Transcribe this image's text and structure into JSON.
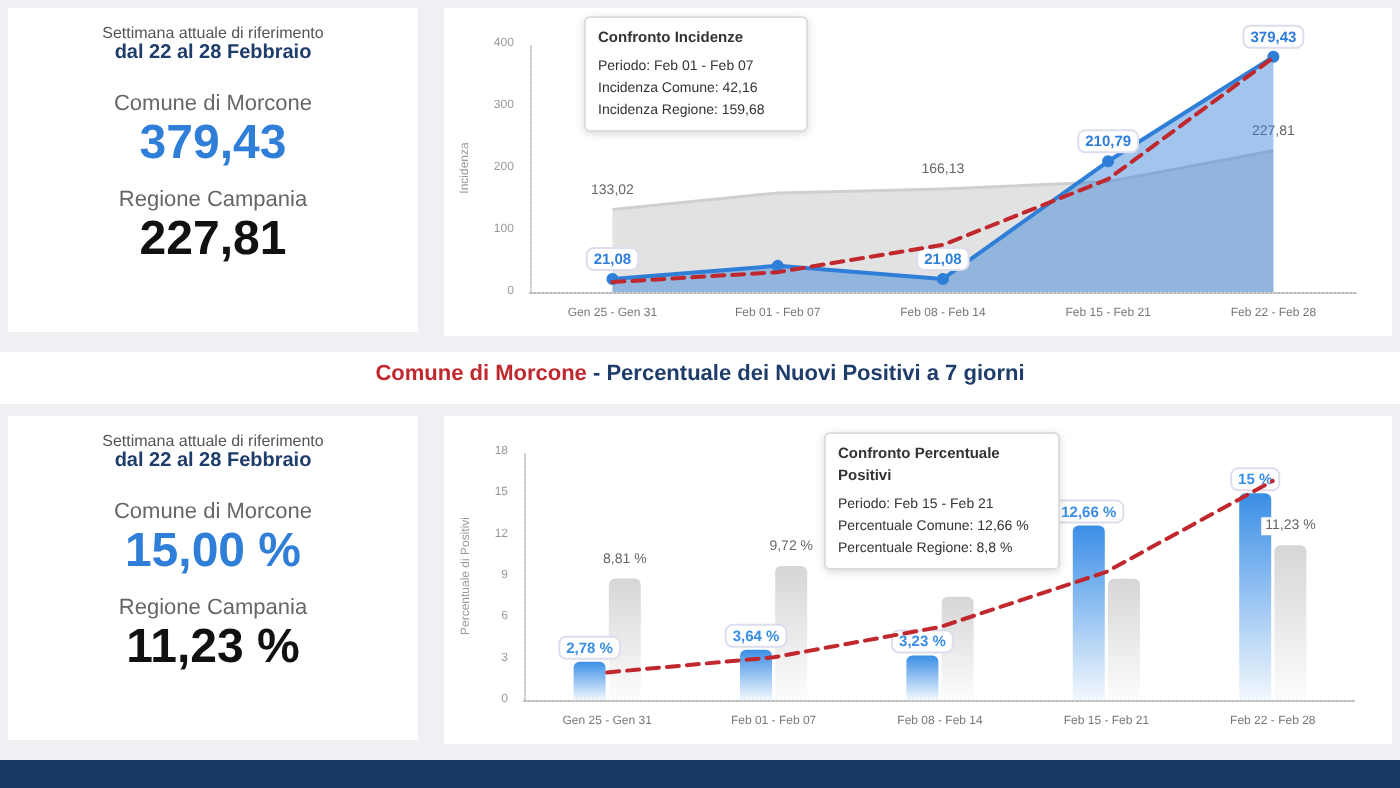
{
  "chart_data": [
    {
      "type": "other",
      "annotations": [
        "Settimana attuale di riferimento",
        "dal 22 al 28 Febbraio",
        "Comune di Morcone",
        "379,43",
        "Regione Campania",
        "227,81"
      ]
    },
    {
      "type": "area",
      "ylabel": "Incidenza",
      "categories": [
        "Gen 25 - Gen 31",
        "Feb 01 - Feb 07",
        "Feb 08 - Feb 14",
        "Feb 15 - Feb 21",
        "Feb 22 - Feb 28"
      ],
      "ylim": [
        0,
        400
      ],
      "yticks": [
        0,
        100,
        200,
        300,
        400
      ],
      "grid": false,
      "series": [
        {
          "color": "#cfcfcf",
          "values": [
            133.02,
            159.68,
            166.13,
            178,
            227.81
          ],
          "value_labels": [
            "133,02",
            null,
            "166,13",
            null,
            "227,81"
          ],
          "marker": "none"
        },
        {
          "color": "#2f7ed8",
          "values": [
            21.08,
            42.16,
            21.08,
            210.79,
            379.43
          ],
          "value_labels": [
            "21,08",
            null,
            "21,08",
            "210,79",
            "379,43"
          ],
          "marker": "circle"
        },
        {
          "type": "line",
          "color": "#c0282d",
          "values": [
            16,
            32,
            76,
            182,
            378
          ],
          "marker": "none",
          "line_style": "dashed"
        }
      ],
      "annotations": [
        "Confronto Incidenze",
        "Periodo: Feb 01 - Feb 07",
        "Incidenza Comune: 42,16",
        "Incidenza Regione: 159,68"
      ]
    },
    {
      "type": "other",
      "annotations": [
        "Settimana attuale di riferimento",
        "dal 22 al 28 Febbraio",
        "Comune di Morcone",
        "15,00 %",
        "Regione Campania",
        "11,23 %"
      ]
    },
    {
      "type": "bar",
      "title": "Comune di Morcone - Percentuale dei Nuovi Positivi a 7 giorni",
      "ylabel": "Percentuale di Positivi",
      "categories": [
        "Gen 25 - Gen 31",
        "Feb 01 - Feb 07",
        "Feb 08 - Feb 14",
        "Feb 15 - Feb 21",
        "Feb 22 - Feb 28"
      ],
      "ylim": [
        0,
        18
      ],
      "yticks": [
        0,
        3,
        6,
        9,
        12,
        15,
        18
      ],
      "grid": false,
      "series": [
        {
          "color": "#3a8ee6",
          "values": [
            2.78,
            3.64,
            3.23,
            12.66,
            15
          ],
          "value_labels": [
            "2,78 %",
            "3,64 %",
            "3,23 %",
            "12,66 %",
            "15 %"
          ]
        },
        {
          "color": "#d6d6d6",
          "values": [
            8.81,
            9.72,
            7.5,
            8.8,
            11.23
          ],
          "value_labels": [
            "8,81 %",
            "9,72 %",
            null,
            null,
            "11,23 %"
          ]
        },
        {
          "type": "line",
          "color": "#c0282d",
          "values": [
            2.0,
            3.1,
            5.3,
            9.3,
            15.9
          ],
          "marker": "none",
          "line_style": "dashed"
        }
      ],
      "annotations": [
        "Confronto Percentuale Positivi",
        "Periodo: Feb 15 - Feb 21",
        "Percentuale Comune: 12,66 %",
        "Percentuale Regione: 8,8 %"
      ]
    }
  ]
}
